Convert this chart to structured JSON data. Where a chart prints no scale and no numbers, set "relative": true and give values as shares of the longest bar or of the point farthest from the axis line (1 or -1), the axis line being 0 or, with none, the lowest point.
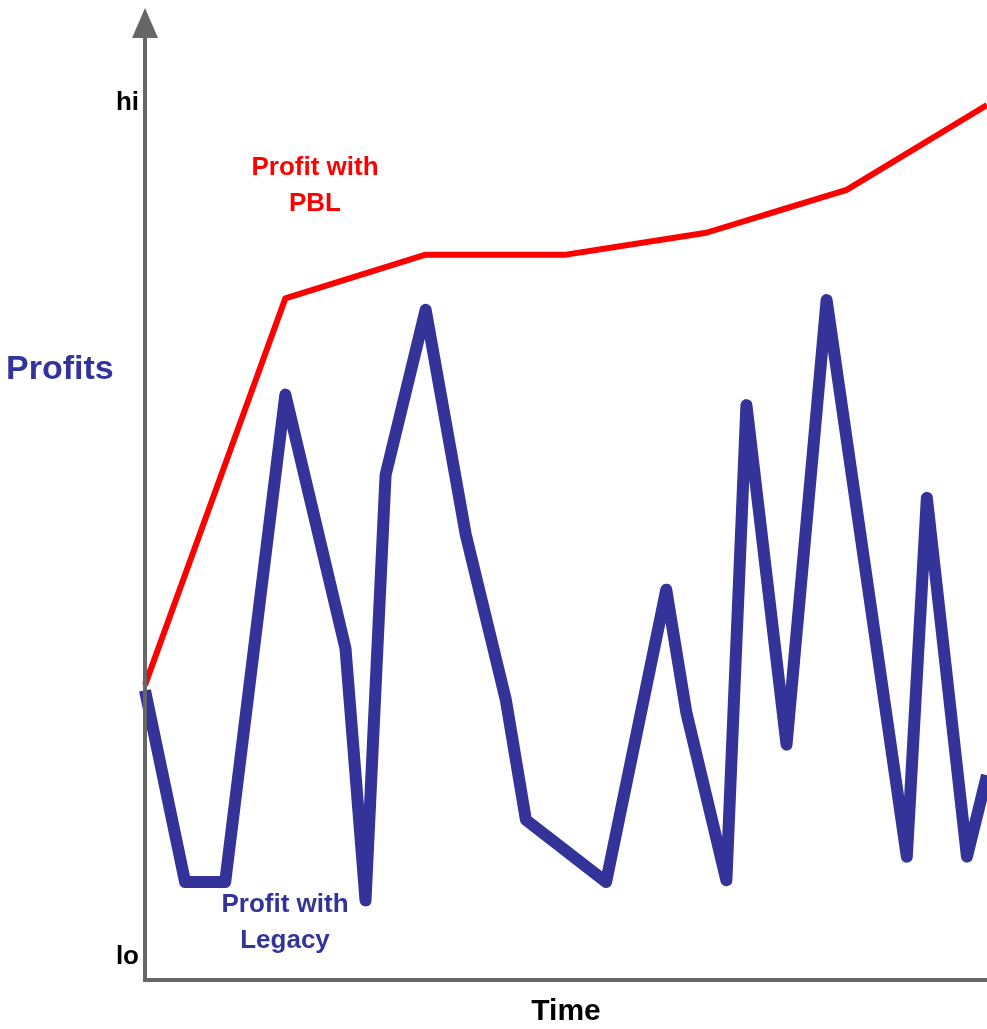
{
  "chart_data": {
    "type": "line",
    "relative": true,
    "xlabel": "Time",
    "ylabel": "Profits",
    "marker": "none",
    "annotations": [
      "hi",
      "lo"
    ],
    "categories": [
      null,
      null,
      null,
      null,
      null,
      null,
      null,
      null,
      null,
      null,
      null,
      null,
      null,
      null,
      null,
      null,
      null,
      null,
      null,
      null,
      null,
      null,
      null,
      null,
      null,
      null,
      null,
      null,
      null,
      null,
      null,
      null,
      null,
      null,
      null,
      null,
      null,
      null,
      null,
      null,
      null,
      null,
      null
    ],
    "series": [
      {
        "name": "Profit with PBL",
        "color": "#ff0000",
        "values": [
          0.337,
          null,
          null,
          null,
          null,
          null,
          null,
          0.779,
          null,
          null,
          null,
          null,
          null,
          null,
          0.829,
          null,
          null,
          null,
          null,
          null,
          null,
          0.829,
          null,
          null,
          null,
          null,
          null,
          null,
          0.854,
          null,
          null,
          null,
          null,
          null,
          null,
          0.903,
          null,
          null,
          null,
          null,
          null,
          null,
          1.0
        ]
      },
      {
        "name": "Profit with Legacy",
        "color": "#333399",
        "values": [
          0.331,
          null,
          0.112,
          null,
          0.112,
          null,
          null,
          0.669,
          null,
          null,
          0.379,
          0.091,
          0.577,
          null,
          0.766,
          null,
          0.509,
          null,
          0.32,
          0.183,
          null,
          null,
          null,
          0.112,
          null,
          null,
          0.446,
          0.306,
          null,
          0.114,
          0.657,
          null,
          0.269,
          null,
          0.777,
          null,
          null,
          null,
          0.141,
          0.551,
          null,
          0.141,
          0.234
        ]
      }
    ]
  }
}
